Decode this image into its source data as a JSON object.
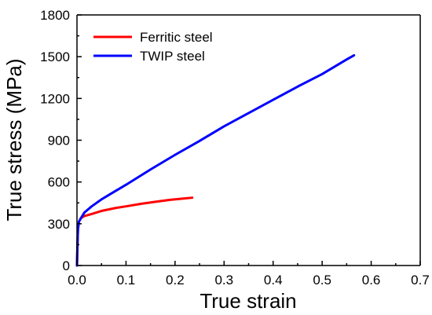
{
  "chart_data": {
    "type": "line",
    "title": "",
    "xlabel": "True strain",
    "ylabel": "True stress (MPa)",
    "xlim": [
      0,
      0.7
    ],
    "ylim": [
      0,
      1800
    ],
    "x_ticks": [
      "0.0",
      "0.1",
      "0.2",
      "0.3",
      "0.4",
      "0.5",
      "0.6",
      "0.7"
    ],
    "y_ticks": [
      "0",
      "300",
      "600",
      "900",
      "1200",
      "1500",
      "1800"
    ],
    "grid": false,
    "legend_position": "top-left",
    "series": [
      {
        "name": "Ferritic steel",
        "color": "#ff0000",
        "points": [
          [
            0.0,
            0
          ],
          [
            0.001,
            150
          ],
          [
            0.002,
            260
          ],
          [
            0.004,
            315
          ],
          [
            0.008,
            340
          ],
          [
            0.015,
            355
          ],
          [
            0.03,
            370
          ],
          [
            0.05,
            392
          ],
          [
            0.08,
            414
          ],
          [
            0.1,
            425
          ],
          [
            0.13,
            443
          ],
          [
            0.16,
            458
          ],
          [
            0.19,
            472
          ],
          [
            0.215,
            480
          ],
          [
            0.235,
            487
          ]
        ]
      },
      {
        "name": "TWIP steel",
        "color": "#0000ff",
        "points": [
          [
            0.0,
            0
          ],
          [
            0.001,
            150
          ],
          [
            0.002,
            260
          ],
          [
            0.004,
            315
          ],
          [
            0.008,
            340
          ],
          [
            0.015,
            380
          ],
          [
            0.03,
            425
          ],
          [
            0.05,
            475
          ],
          [
            0.075,
            528
          ],
          [
            0.1,
            580
          ],
          [
            0.15,
            690
          ],
          [
            0.2,
            795
          ],
          [
            0.25,
            895
          ],
          [
            0.3,
            1000
          ],
          [
            0.35,
            1095
          ],
          [
            0.4,
            1190
          ],
          [
            0.45,
            1285
          ],
          [
            0.5,
            1375
          ],
          [
            0.55,
            1480
          ],
          [
            0.565,
            1510
          ]
        ]
      }
    ]
  }
}
